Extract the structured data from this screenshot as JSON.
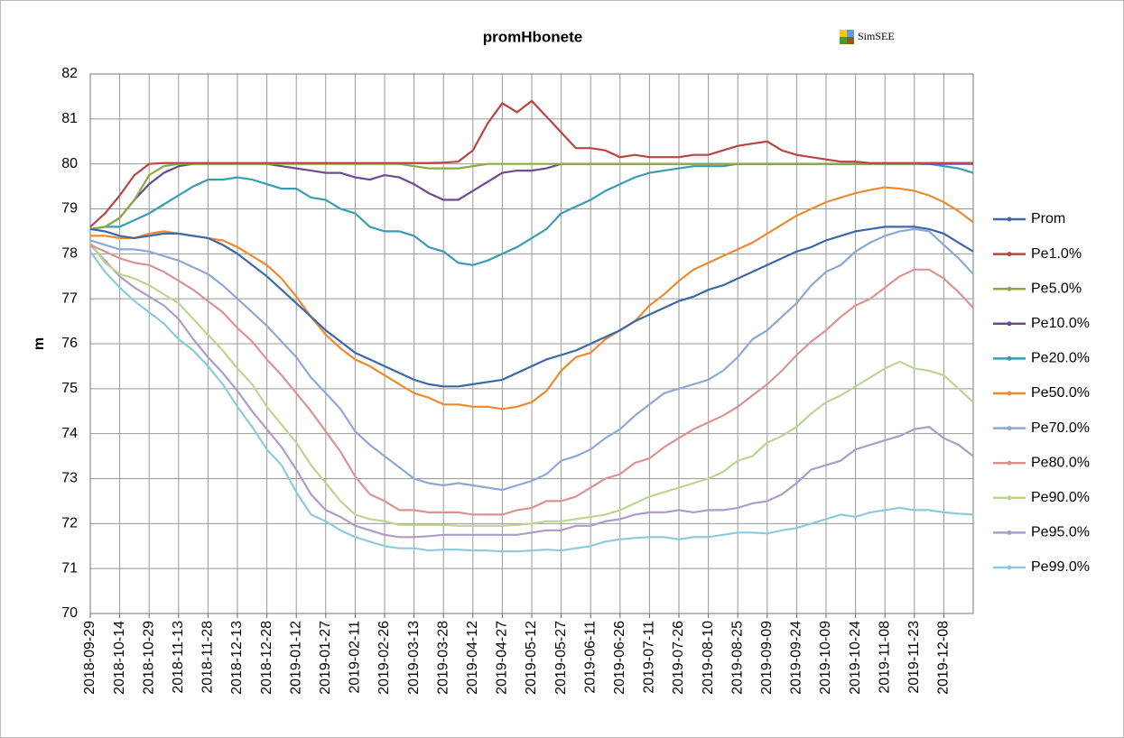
{
  "chart_data": {
    "type": "line",
    "title": "promHbonete",
    "logo": "SimSEE",
    "y_label": "m",
    "categories": [
      "2018-09-29",
      null,
      "2018-10-14",
      null,
      "2018-10-29",
      null,
      "2018-11-13",
      null,
      "2018-11-28",
      null,
      "2018-12-13",
      null,
      "2018-12-28",
      null,
      "2019-01-12",
      null,
      "2019-01-27",
      null,
      "2019-02-11",
      null,
      "2019-02-26",
      null,
      "2019-03-13",
      null,
      "2019-03-28",
      null,
      "2019-04-12",
      null,
      "2019-04-27",
      null,
      "2019-05-12",
      null,
      "2019-05-27",
      null,
      "2019-06-11",
      null,
      "2019-06-26",
      null,
      "2019-07-11",
      null,
      "2019-07-26",
      null,
      "2019-08-10",
      null,
      "2019-08-25",
      null,
      "2019-09-09",
      null,
      "2019-09-24",
      null,
      "2019-10-09",
      null,
      "2019-10-24",
      null,
      "2019-11-08",
      null,
      "2019-11-23",
      null,
      "2019-12-08",
      null,
      null
    ],
    "ylim": [
      70,
      82
    ],
    "yticks": [
      70,
      71,
      72,
      73,
      74,
      75,
      76,
      77,
      78,
      79,
      80,
      81,
      82
    ],
    "grid": true,
    "legend": "right",
    "series": [
      {
        "name": "Prom",
        "color": "#3c68a7",
        "values": [
          78.55,
          78.5,
          78.4,
          78.35,
          78.4,
          78.45,
          78.45,
          78.4,
          78.35,
          78.2,
          78.0,
          77.75,
          77.5,
          77.2,
          76.9,
          76.6,
          76.3,
          76.05,
          75.8,
          75.65,
          75.5,
          75.35,
          75.2,
          75.1,
          75.05,
          75.05,
          75.1,
          75.15,
          75.2,
          75.35,
          75.5,
          75.65,
          75.75,
          75.85,
          76.0,
          76.15,
          76.3,
          76.5,
          76.65,
          76.8,
          76.95,
          77.05,
          77.2,
          77.3,
          77.45,
          77.6,
          77.75,
          77.9,
          78.05,
          78.15,
          78.3,
          78.4,
          78.5,
          78.55,
          78.6,
          78.6,
          78.6,
          78.55,
          78.45,
          78.25,
          78.05
        ]
      },
      {
        "name": "Pe1.0%",
        "color": "#b94443",
        "values": [
          78.6,
          78.9,
          79.3,
          79.75,
          80.0,
          80.02,
          80.02,
          80.02,
          80.02,
          80.02,
          80.02,
          80.02,
          80.02,
          80.02,
          80.02,
          80.02,
          80.02,
          80.02,
          80.02,
          80.02,
          80.02,
          80.02,
          80.02,
          80.02,
          80.03,
          80.05,
          80.3,
          80.9,
          81.35,
          81.15,
          81.4,
          81.05,
          80.7,
          80.35,
          80.35,
          80.3,
          80.15,
          80.2,
          80.15,
          80.15,
          80.15,
          80.2,
          80.2,
          80.3,
          80.4,
          80.45,
          80.5,
          80.3,
          80.2,
          80.15,
          80.1,
          80.05,
          80.05,
          80.02,
          80.02,
          80.02,
          80.02,
          80.02,
          80.02,
          80.02,
          80.02
        ]
      },
      {
        "name": "Pe5.0%",
        "color": "#8aab43",
        "values": [
          78.55,
          78.6,
          78.8,
          79.2,
          79.75,
          79.95,
          80.0,
          80.0,
          80.0,
          80.0,
          80.0,
          80.0,
          80.0,
          80.0,
          80.0,
          80.0,
          80.0,
          80.0,
          80.0,
          80.0,
          80.0,
          80.0,
          79.95,
          79.9,
          79.9,
          79.9,
          79.95,
          80.0,
          80.0,
          80.0,
          80.0,
          80.0,
          80.0,
          80.0,
          80.0,
          80.0,
          80.0,
          80.0,
          80.0,
          80.0,
          80.0,
          80.0,
          80.0,
          80.0,
          80.0,
          80.0,
          80.0,
          80.0,
          80.0,
          80.0,
          80.0,
          80.0,
          80.0,
          80.0,
          80.0,
          80.0,
          80.0,
          80.02,
          80.02,
          80.02,
          80.02
        ]
      },
      {
        "name": "Pe10.0%",
        "color": "#6b4b91",
        "values": [
          78.55,
          78.6,
          78.8,
          79.2,
          79.55,
          79.8,
          79.95,
          80.0,
          80.0,
          80.0,
          80.0,
          80.0,
          80.0,
          79.95,
          79.9,
          79.85,
          79.8,
          79.8,
          79.7,
          79.65,
          79.75,
          79.7,
          79.55,
          79.35,
          79.2,
          79.2,
          79.4,
          79.6,
          79.8,
          79.85,
          79.85,
          79.9,
          80.0,
          80.0,
          80.0,
          80.0,
          80.0,
          80.0,
          80.0,
          80.0,
          80.0,
          80.0,
          80.0,
          80.0,
          80.0,
          80.0,
          80.0,
          80.0,
          80.0,
          80.0,
          80.0,
          80.0,
          80.0,
          80.0,
          80.0,
          80.0,
          80.0,
          80.0,
          80.0,
          80.0,
          80.0
        ]
      },
      {
        "name": "Pe20.0%",
        "color": "#3a9cb3",
        "values": [
          78.55,
          78.6,
          78.6,
          78.75,
          78.9,
          79.1,
          79.3,
          79.5,
          79.65,
          79.65,
          79.7,
          79.65,
          79.55,
          79.45,
          79.45,
          79.25,
          79.2,
          79.0,
          78.9,
          78.6,
          78.5,
          78.5,
          78.4,
          78.15,
          78.05,
          77.8,
          77.75,
          77.85,
          78.0,
          78.15,
          78.35,
          78.55,
          78.9,
          79.05,
          79.2,
          79.4,
          79.55,
          79.7,
          79.8,
          79.85,
          79.9,
          79.95,
          79.95,
          79.95,
          80.0,
          80.0,
          80.0,
          80.0,
          80.0,
          80.0,
          80.0,
          80.0,
          80.0,
          80.0,
          80.0,
          80.0,
          80.0,
          80.0,
          79.95,
          79.9,
          79.8
        ]
      },
      {
        "name": "Pe50.0%",
        "color": "#ed8a2f",
        "values": [
          78.4,
          78.4,
          78.35,
          78.35,
          78.45,
          78.5,
          78.45,
          78.4,
          78.35,
          78.3,
          78.15,
          77.95,
          77.75,
          77.45,
          77.05,
          76.6,
          76.2,
          75.9,
          75.65,
          75.5,
          75.3,
          75.1,
          74.9,
          74.8,
          74.65,
          74.65,
          74.6,
          74.6,
          74.55,
          74.6,
          74.7,
          74.95,
          75.4,
          75.7,
          75.8,
          76.1,
          76.3,
          76.5,
          76.85,
          77.1,
          77.4,
          77.65,
          77.8,
          77.95,
          78.1,
          78.25,
          78.45,
          78.65,
          78.85,
          79.0,
          79.15,
          79.25,
          79.35,
          79.42,
          79.48,
          79.45,
          79.4,
          79.3,
          79.15,
          78.95,
          78.7
        ]
      },
      {
        "name": "Pe70.0%",
        "color": "#8ea8d5",
        "values": [
          78.3,
          78.2,
          78.1,
          78.1,
          78.05,
          77.95,
          77.85,
          77.7,
          77.55,
          77.3,
          77.0,
          76.7,
          76.4,
          76.05,
          75.7,
          75.25,
          74.9,
          74.55,
          74.05,
          73.75,
          73.5,
          73.25,
          73.0,
          72.9,
          72.85,
          72.9,
          72.85,
          72.8,
          72.75,
          72.85,
          72.95,
          73.1,
          73.4,
          73.5,
          73.65,
          73.9,
          74.1,
          74.4,
          74.65,
          74.9,
          75.0,
          75.1,
          75.2,
          75.4,
          75.7,
          76.1,
          76.3,
          76.6,
          76.9,
          77.3,
          77.6,
          77.75,
          78.05,
          78.25,
          78.4,
          78.5,
          78.55,
          78.5,
          78.2,
          77.9,
          77.55
        ]
      },
      {
        "name": "Pe80.0%",
        "color": "#d99492",
        "values": [
          78.2,
          78.05,
          77.9,
          77.8,
          77.75,
          77.6,
          77.4,
          77.2,
          76.95,
          76.7,
          76.35,
          76.05,
          75.65,
          75.3,
          74.9,
          74.5,
          74.05,
          73.6,
          73.05,
          72.65,
          72.5,
          72.3,
          72.3,
          72.25,
          72.25,
          72.25,
          72.2,
          72.2,
          72.2,
          72.3,
          72.35,
          72.5,
          72.5,
          72.6,
          72.8,
          73.0,
          73.1,
          73.35,
          73.45,
          73.7,
          73.9,
          74.1,
          74.25,
          74.4,
          74.6,
          74.85,
          75.1,
          75.4,
          75.75,
          76.05,
          76.3,
          76.6,
          76.85,
          77.0,
          77.25,
          77.5,
          77.65,
          77.65,
          77.45,
          77.15,
          76.8
        ]
      },
      {
        "name": "Pe90.0%",
        "color": "#bcd591",
        "values": [
          78.25,
          77.8,
          77.55,
          77.45,
          77.3,
          77.1,
          76.9,
          76.55,
          76.2,
          75.85,
          75.45,
          75.1,
          74.6,
          74.2,
          73.8,
          73.3,
          72.9,
          72.5,
          72.2,
          72.1,
          72.05,
          71.97,
          71.97,
          71.97,
          71.97,
          71.95,
          71.95,
          71.95,
          71.95,
          71.97,
          72.0,
          72.05,
          72.05,
          72.1,
          72.15,
          72.2,
          72.3,
          72.45,
          72.6,
          72.7,
          72.8,
          72.9,
          73.0,
          73.15,
          73.4,
          73.5,
          73.8,
          73.95,
          74.15,
          74.45,
          74.7,
          74.85,
          75.05,
          75.25,
          75.45,
          75.6,
          75.45,
          75.4,
          75.3,
          75.0,
          74.7
        ]
      },
      {
        "name": "Pe95.0%",
        "color": "#ad9cc6",
        "values": [
          78.2,
          77.85,
          77.5,
          77.25,
          77.05,
          76.85,
          76.55,
          76.1,
          75.7,
          75.35,
          74.95,
          74.5,
          74.1,
          73.7,
          73.2,
          72.65,
          72.3,
          72.15,
          71.95,
          71.85,
          71.75,
          71.7,
          71.7,
          71.72,
          71.75,
          71.75,
          71.75,
          71.75,
          71.75,
          71.75,
          71.8,
          71.85,
          71.85,
          71.95,
          71.95,
          72.05,
          72.1,
          72.2,
          72.25,
          72.25,
          72.3,
          72.25,
          72.3,
          72.3,
          72.35,
          72.45,
          72.5,
          72.65,
          72.9,
          73.2,
          73.3,
          73.4,
          73.65,
          73.75,
          73.85,
          73.95,
          74.1,
          74.15,
          73.9,
          73.75,
          73.5
        ]
      },
      {
        "name": "Pe99.0%",
        "color": "#8ccbdc",
        "values": [
          78.05,
          77.6,
          77.25,
          76.95,
          76.7,
          76.45,
          76.1,
          75.85,
          75.5,
          75.1,
          74.6,
          74.15,
          73.65,
          73.3,
          72.7,
          72.2,
          72.05,
          71.85,
          71.7,
          71.6,
          71.5,
          71.45,
          71.45,
          71.4,
          71.42,
          71.42,
          71.4,
          71.4,
          71.38,
          71.38,
          71.4,
          71.42,
          71.4,
          71.45,
          71.5,
          71.6,
          71.65,
          71.68,
          71.7,
          71.7,
          71.65,
          71.7,
          71.7,
          71.75,
          71.8,
          71.8,
          71.78,
          71.85,
          71.9,
          72.0,
          72.1,
          72.2,
          72.15,
          72.25,
          72.3,
          72.35,
          72.3,
          72.3,
          72.25,
          72.22,
          72.2
        ]
      }
    ]
  }
}
